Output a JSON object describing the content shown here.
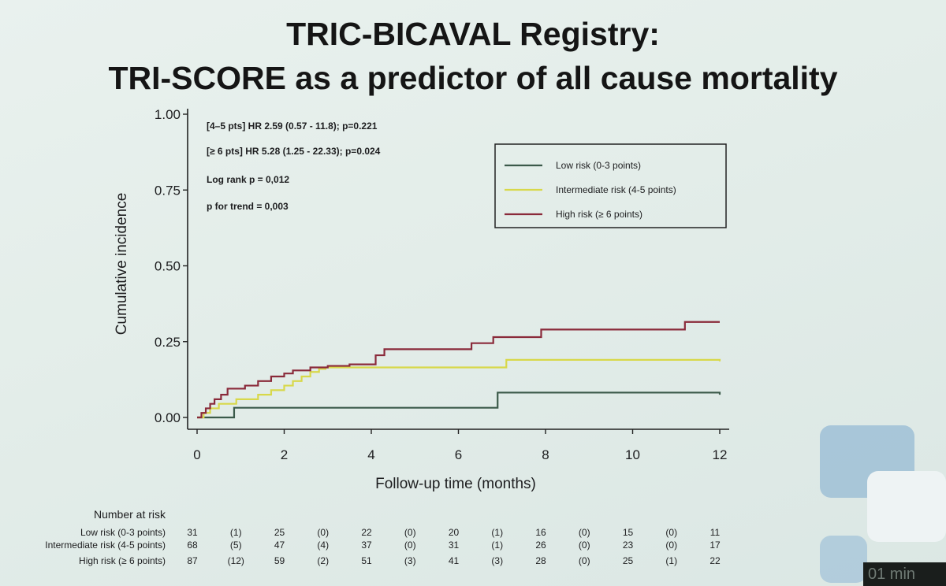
{
  "slide": {
    "title_line_1": "TRIC-BICAVAL Registry:",
    "title_line_2": "TRI-SCORE as a predictor of all cause mortality",
    "footer_badge": "01 min"
  },
  "annotations": [
    "[4–5 pts] HR 2.59 (0.57 - 11.8); p=0.221",
    "[≥ 6 pts] HR 5.28 (1.25 - 22.33); p=0.024",
    "Log rank p = 0,012",
    "p for trend = 0,003"
  ],
  "colors": {
    "low": "#3b5a4a",
    "intermediate": "#d8d84a",
    "high": "#8a2a3a",
    "axis": "#222222",
    "decor": "#8fb6cf"
  },
  "chart_data": {
    "type": "line",
    "title": "",
    "xlabel": "Follow-up time (months)",
    "ylabel": "Cumulative incidence",
    "xlim": [
      0,
      12
    ],
    "ylim": [
      0,
      1
    ],
    "xticks": [
      0,
      2,
      4,
      6,
      8,
      10,
      12
    ],
    "yticks": [
      0,
      0.25,
      0.5,
      0.75,
      1.0
    ],
    "ytick_labels": [
      "0.00",
      "0.25",
      "0.50",
      "0.75",
      "1.00"
    ],
    "legend_position": "top-right",
    "step": true,
    "series": [
      {
        "name": "Low risk (0-3 points)",
        "color_key": "low",
        "x": [
          0,
          0.85,
          0.85,
          6.9,
          6.9,
          12
        ],
        "y": [
          0,
          0,
          0.032,
          0.032,
          0.082,
          0.075
        ]
      },
      {
        "name": "Intermediate risk (4-5 points)",
        "color_key": "intermediate",
        "x": [
          0,
          0.15,
          0.3,
          0.5,
          0.9,
          1.4,
          1.7,
          2.0,
          2.2,
          2.4,
          2.6,
          2.8,
          2.95,
          3.1,
          4.0,
          7.1,
          12
        ],
        "y": [
          0,
          0.015,
          0.03,
          0.045,
          0.06,
          0.075,
          0.09,
          0.105,
          0.12,
          0.135,
          0.15,
          0.16,
          0.165,
          0.165,
          0.165,
          0.19,
          0.185
        ]
      },
      {
        "name": "High risk (≥ 6 points)",
        "color_key": "high",
        "x": [
          0,
          0.1,
          0.2,
          0.3,
          0.4,
          0.55,
          0.7,
          1.1,
          1.4,
          1.7,
          2.0,
          2.2,
          2.6,
          3.0,
          3.5,
          4.1,
          4.3,
          6.3,
          6.8,
          7.9,
          11.2,
          12
        ],
        "y": [
          0,
          0.015,
          0.03,
          0.045,
          0.06,
          0.075,
          0.095,
          0.105,
          0.12,
          0.135,
          0.145,
          0.155,
          0.165,
          0.17,
          0.175,
          0.205,
          0.225,
          0.245,
          0.265,
          0.29,
          0.315,
          0.315
        ]
      }
    ],
    "risk_table": {
      "header": "Number at risk",
      "columns_x": [
        0,
        1,
        2,
        3,
        4,
        5,
        6,
        7,
        8,
        9,
        10,
        11,
        12
      ],
      "rows": [
        {
          "label": "Low risk (0-3 points)",
          "values": [
            "31",
            "(1)",
            "25",
            "(0)",
            "22",
            "(0)",
            "20",
            "(1)",
            "16",
            "(0)",
            "15",
            "(0)",
            "11"
          ]
        },
        {
          "label": "Intermediate risk (4-5 points)",
          "values": [
            "68",
            "(5)",
            "47",
            "(4)",
            "37",
            "(0)",
            "31",
            "(1)",
            "26",
            "(0)",
            "23",
            "(0)",
            "17"
          ]
        },
        {
          "label": "High risk (≥ 6 points)",
          "values": [
            "87",
            "(12)",
            "59",
            "(2)",
            "51",
            "(3)",
            "41",
            "(3)",
            "28",
            "(0)",
            "25",
            "(1)",
            "22"
          ]
        }
      ]
    }
  }
}
